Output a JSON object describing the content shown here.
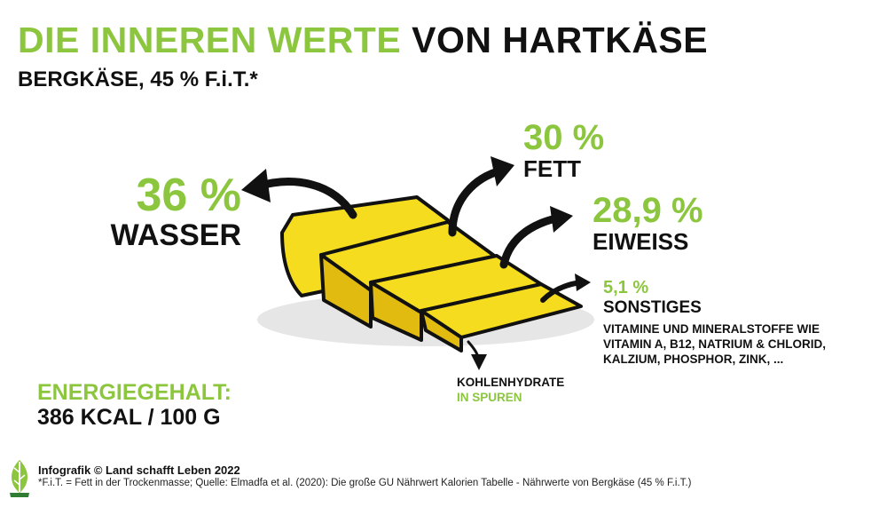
{
  "title": {
    "part1": "DIE INNEREN WERTE",
    "part2": "VON HARTKÄSE"
  },
  "subtitle": "BERGKÄSE, 45 % F.i.T.*",
  "chart_data": {
    "type": "infographic",
    "title": "DIE INNEREN WERTE VON HARTKÄSE",
    "subtitle": "BERGKÄSE, 45 % F.i.T.*",
    "components": [
      {
        "name": "WASSER",
        "value_label": "36 %",
        "value": 36
      },
      {
        "name": "FETT",
        "value_label": "30 %",
        "value": 30
      },
      {
        "name": "EIWEISS",
        "value_label": "28,9 %",
        "value": 28.9
      },
      {
        "name": "SONSTIGES",
        "value_label": "5,1 %",
        "value": 5.1,
        "details": [
          "VITAMINE UND MINERALSTOFFE WIE",
          "VITAMIN A, B12, NATRIUM & CHLORID,",
          "KALZIUM, PHOSPHOR, ZINK, ..."
        ]
      },
      {
        "name": "KOHLENHYDRATE",
        "value_label": "IN SPUREN"
      }
    ],
    "energy": {
      "label": "ENERGIEGEHALT:",
      "value": "386 KCAL / 100 G"
    }
  },
  "credit": "Infografik © Land schafft Leben 2022",
  "footnote": "*F.i.T. = Fett in der Trockenmasse; Quelle: Elmadfa et al. (2020): Die große GU Nährwert Kalorien Tabelle - Nährwerte von Bergkäse (45 % F.i.T.)",
  "colors": {
    "accent": "#8cc63f",
    "text": "#111111",
    "cheese": "#f5dc1e",
    "cheese_dark": "#e2bb10",
    "shadow": "#e6e6e6"
  },
  "icons": {
    "logo": "leaf-logo-icon"
  }
}
